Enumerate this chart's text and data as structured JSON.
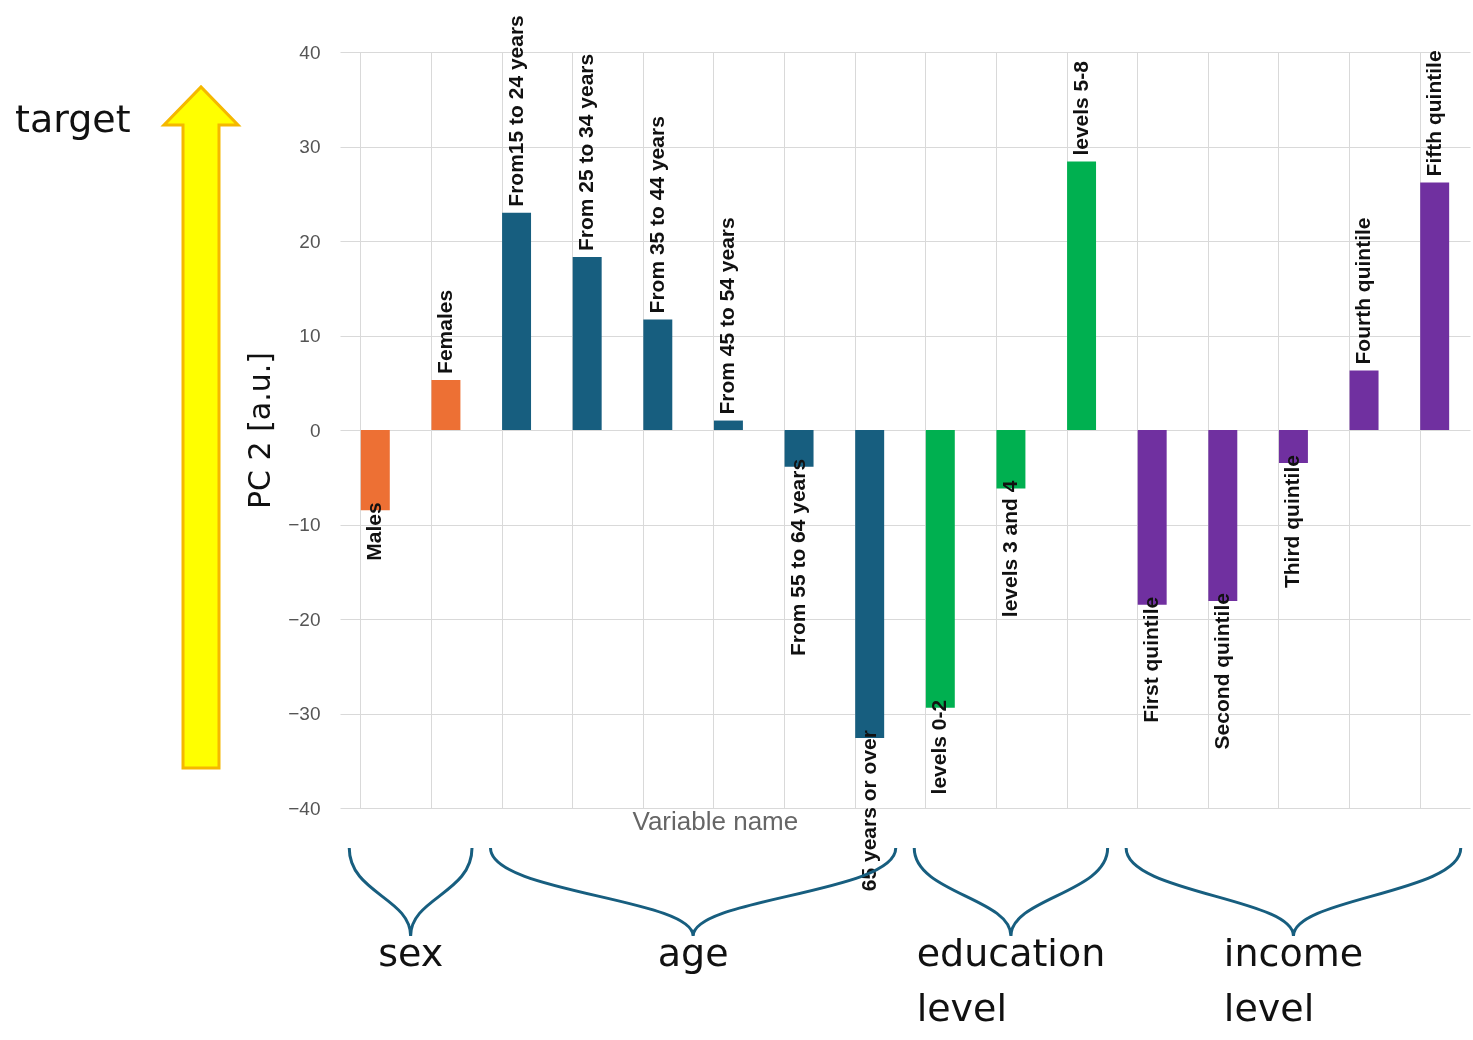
{
  "chart_data": {
    "type": "bar",
    "xlabel": "Variable name",
    "ylabel": "PC 2 [a.u.]",
    "categories": [
      "Males",
      "Females",
      "From15 to 24 years",
      "From 25 to 34 years",
      "From 35 to 44 years",
      "From 45 to 54 years",
      "From 55 to 64 years",
      "65 years or over",
      "levels 0-2",
      "levels 3 and 4",
      "levels 5-8",
      "First quintile",
      "Second quintile",
      "Third quintile",
      "Fourth quintile",
      "Fifth quintile"
    ],
    "values": [
      -8.5,
      5.3,
      23.0,
      18.3,
      11.7,
      1.0,
      -3.9,
      -32.6,
      -29.4,
      -6.2,
      28.4,
      -18.5,
      -18.1,
      -3.5,
      6.3,
      26.2
    ],
    "colors": [
      "#ed7034",
      "#ed7034",
      "#175e7f",
      "#175e7f",
      "#175e7f",
      "#175e7f",
      "#175e7f",
      "#175e7f",
      "#00b050",
      "#00b050",
      "#00b050",
      "#7030a0",
      "#7030a0",
      "#7030a0",
      "#7030a0",
      "#7030a0"
    ],
    "ylim": [
      -40,
      40
    ],
    "yticks": [
      -40,
      -30,
      -20,
      -10,
      0,
      10,
      20,
      30,
      40
    ],
    "grid": true,
    "tick_labels": "y",
    "annotations": [
      "target",
      "sex",
      "age",
      "education level",
      "income level"
    ]
  }
}
